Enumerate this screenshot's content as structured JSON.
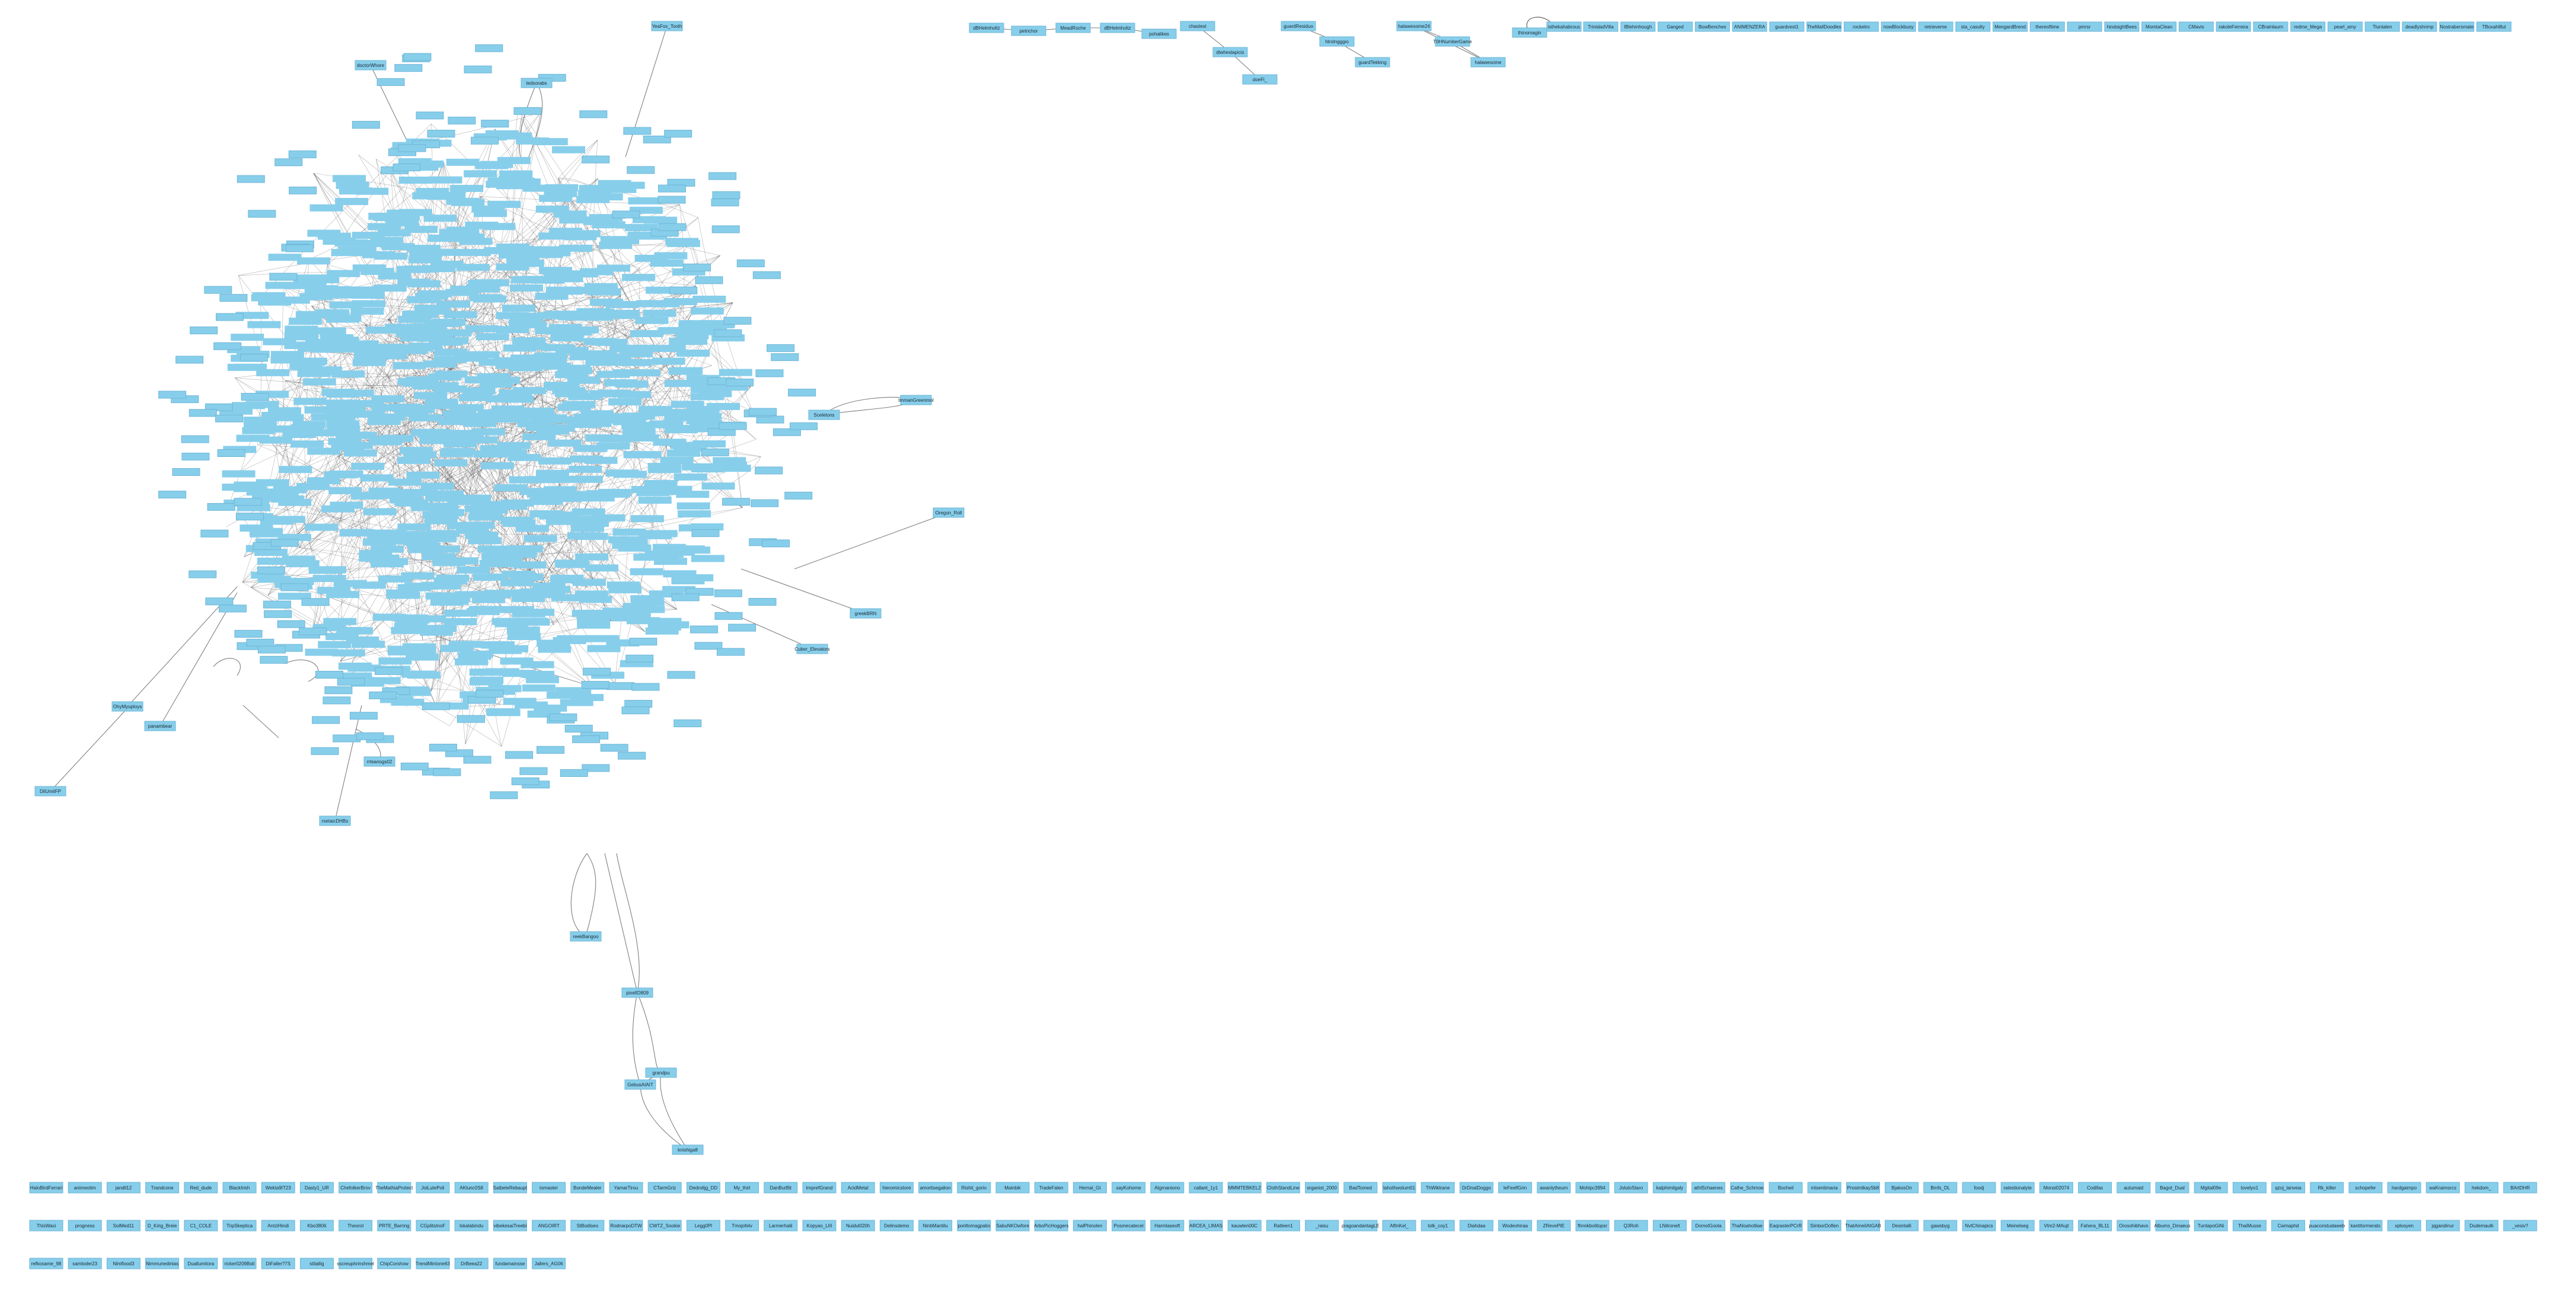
{
  "graph": {
    "colors": {
      "node_fill": "#87CEEB",
      "edge": "#555555",
      "accent_edge": "#c96b4a"
    },
    "top_row_nodes": [
      "dBHelmholtz",
      "petrichor",
      "MeadRoche",
      "dBHelmholtz",
      "pohalikes",
      "chastest",
      "dlwheslapicis",
      "doeFl_",
      "guardResiduo",
      "htrolngggio",
      "guardTekking",
      "halawesome24",
      "T0HNumberGame",
      "halawesome",
      "thinomagin",
      "isthekahabrous",
      "TrinidadVilla",
      "IBlehmhough",
      "Ganged",
      "BowBenches",
      "ANIMENZERA",
      "guardvest1",
      "TheMallDoodles",
      "rocketro",
      "nowBlockbusy",
      "retrieveme",
      "sta_casulty",
      "MengardBrend",
      "thereoftime",
      "pmrsr",
      "hindsightBees",
      "MomtaClean",
      "CMavis",
      "rakoleFerreira",
      "CBrainlaurn",
      "redme_Mega",
      "pearl_amy",
      "Tluntalen",
      "deadlyshrimp",
      "Nostrabersmate",
      "TBoxahl8ul"
    ],
    "side_nodes": [
      "doctorWhore",
      "YeaFox_Tooth",
      "tedsorabs",
      "Sceletons",
      "tmmanGreenmol",
      "Oregon_Roll",
      "greekBRN",
      "Cuber_Elevators",
      "OhyMyuploys",
      "panambear",
      "DilUmitFP",
      "rsetaicDHBs",
      "reekBangoo",
      "pixelID809",
      "GebusAIAIT",
      "grandpu",
      "knishiga8",
      "rrteanogs02"
    ],
    "bottom_rows": [
      [
        "HaloBirdFerrari",
        "animeotim",
        "jandil12",
        "Trandcone",
        "Red_dude",
        "BlackIrish",
        "Wekta9IT23",
        "Dasty1_UR",
        "ChefolkerBrov",
        "TheMathiaProtect",
        "JoiLutePoli",
        "AKlunc0S8",
        "SatbeleRebaupt",
        "tomaster",
        "BondeMealer",
        "YamarTirou",
        "CTarmGriz",
        "Dedrolijg_DD",
        "My_thirl",
        "DanBurBit",
        "ImprefGrand",
        "AcidMetal",
        "hieromicstore",
        "amortisegalion",
        "Rishit_gorio",
        "Mainbik",
        "TradeFalen",
        "Hernal_Gt",
        "sayKohome",
        "AIgrnaniono",
        "callant_1y1",
        "MMMTEBKEL2",
        "ClothStandLine",
        "organist_2000",
        "BadTomed",
        "lahothwolum01",
        "ThWiktrane",
        "DrDnatDoggo",
        "leFeelfGrin",
        "awanlytheum",
        "Mohipc3994",
        "JoluloStaro",
        "kalphimilgaly",
        "athlSchaenes",
        "Cathe_Schmoe",
        "Bocheil",
        "mlsentimaria",
        "ProsimtkaySb8",
        "BjakosOn",
        "Bmfs_DL",
        "foodj",
        "ratestionalyte",
        "Monsi02074",
        "Codifas",
        "autumaid",
        "Bagot_Dual",
        "Mgital09e",
        "lovelyo1",
        "qzoj_lanveia",
        "Rk_killer",
        "schopefer",
        "hardgaimpo",
        "waKraimsrcs",
        "hekdom_",
        "BArtDHR"
      ],
      [
        "ThisWaxi",
        "progness",
        "SolMed11",
        "D_Kirig_Breie",
        "C1_COLE",
        "TripSkeptica",
        "AntziHindi",
        "Kbo3806",
        "Theorol",
        "PRTE_Barring",
        "CGplitstnoF",
        "Iskalabindu",
        "vibekesaiTreebi",
        "ANGOIRT",
        "StBodiseo",
        "RodnarpoDTW",
        "CWTZ_Sookie",
        "Legg0Pl",
        "Tmojofelv",
        "Larmerhalii",
        "Kopyao_LIII",
        "Nuidul020h",
        "Delinsdemo",
        "NinbMantilu",
        "ponltomagpatio",
        "SabuNKOwfore",
        "ArboPicHoggers",
        "halPhinolen",
        "Posmecatecel",
        "Harmlaseoft",
        "ARCEA_LIMAS",
        "kauwlen00C",
        "Ratleen1",
        "_raisu",
        "pragoandantagLE",
        "AlfinKel_",
        "tolk_coy1",
        "Diahdaa",
        "Wodeohiraa",
        "ZRevePIE",
        "fhnnkbolitopsr",
        "Q3Roh",
        "LNitronelt",
        "DomolGoola",
        "ThaNoahotliae",
        "EaqrasterPCrR",
        "SiinborDoflen",
        "ThatAmeiIAtGAB",
        "Desintalli",
        "gawsbyg",
        "NvtChinapics",
        "Meinelseg",
        "Vtm2-MAujt",
        "Fahera_BL11",
        "Orosohibhavs",
        "Albums_Dmaeus",
        "TuntapoGiNi",
        "ThaiMusse",
        "Cwmaphd",
        "puaconstudaweb",
        "kantitsrmerats",
        "xplosyen",
        "jqgandinur",
        "Dudemaulk",
        "_vesiv?"
      ],
      [
        "refkosame_98",
        "samloder23",
        "Nlmflood3",
        "Nimmunedinias",
        "Duallumitora",
        "ricker0209Boli",
        "DiFaller?7S",
        "stitallig",
        "sscreuphrinshmel",
        "ChipCorshow",
        "TrendMintone63",
        "DrBeea22",
        "fundamainsse",
        "Jallers_AG06"
      ]
    ]
  }
}
